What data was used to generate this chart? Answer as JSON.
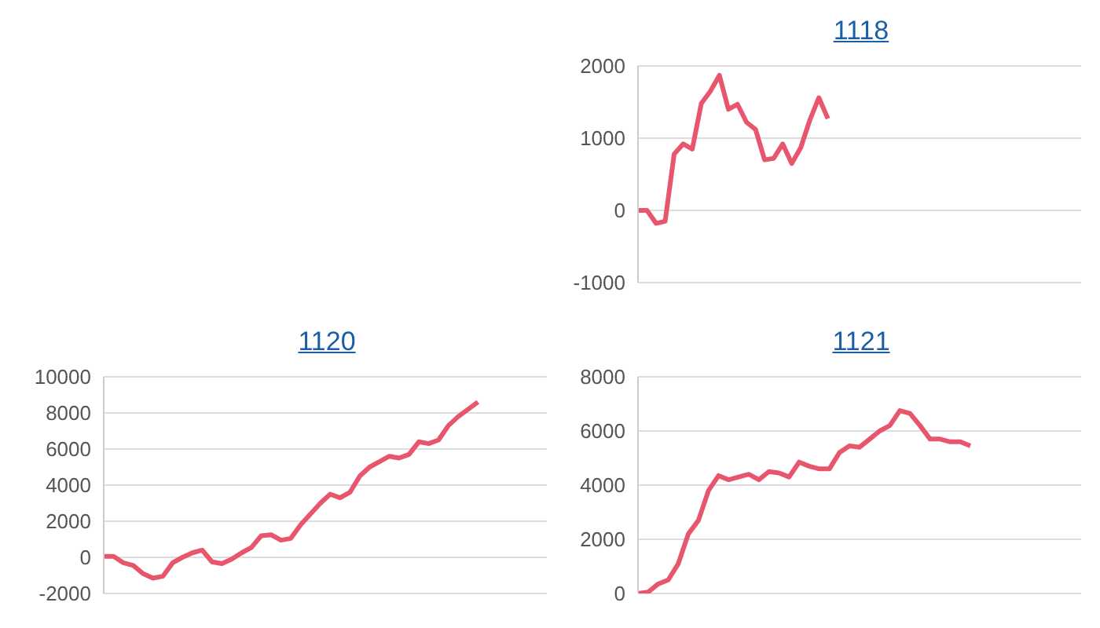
{
  "chart_data": [
    {
      "type": "line",
      "title": "1118",
      "categories": [
        null,
        null,
        null,
        null,
        null,
        null,
        null,
        null,
        null,
        null,
        null,
        null,
        null,
        null,
        null,
        null,
        null,
        null,
        null,
        null,
        null,
        null,
        null,
        null,
        null,
        null,
        null,
        null,
        null,
        null,
        null,
        null,
        null,
        null,
        null,
        null,
        null,
        null,
        null,
        null,
        null,
        null,
        null,
        null,
        null,
        null,
        null,
        null,
        null,
        null
      ],
      "series": [
        {
          "color": "#e8566e",
          "values": [
            0,
            0,
            -180,
            -150,
            780,
            920,
            850,
            1480,
            1650,
            1870,
            1400,
            1470,
            1220,
            1120,
            700,
            720,
            920,
            650,
            870,
            1250,
            1560,
            1270,
            null,
            null,
            null,
            null,
            null,
            null,
            null,
            null,
            null,
            null,
            null,
            null,
            null,
            null,
            null,
            null,
            null,
            null,
            null,
            null,
            null,
            null,
            null,
            null,
            null,
            null,
            null,
            null
          ]
        }
      ],
      "ylim": [
        -1000,
        2000
      ],
      "yticks": [
        -1000,
        0,
        1000,
        2000
      ],
      "grid": "y",
      "marker": "none",
      "tick_labels": "y"
    },
    {
      "type": "line",
      "title": "1120",
      "categories": [
        null,
        null,
        null,
        null,
        null,
        null,
        null,
        null,
        null,
        null,
        null,
        null,
        null,
        null,
        null,
        null,
        null,
        null,
        null,
        null,
        null,
        null,
        null,
        null,
        null,
        null,
        null,
        null,
        null,
        null,
        null,
        null,
        null,
        null,
        null,
        null,
        null,
        null,
        null,
        null,
        null,
        null,
        null,
        null,
        null,
        null
      ],
      "series": [
        {
          "color": "#e8566e",
          "values": [
            50,
            50,
            -300,
            -450,
            -900,
            -1150,
            -1050,
            -300,
            0,
            250,
            400,
            -250,
            -350,
            -100,
            250,
            550,
            1200,
            1250,
            950,
            1050,
            1800,
            2400,
            3000,
            3500,
            3300,
            3600,
            4500,
            5000,
            5300,
            5600,
            5500,
            5700,
            6400,
            6300,
            6500,
            7300,
            7800,
            8200,
            8600,
            null,
            null,
            null,
            null,
            null,
            null,
            null
          ]
        }
      ],
      "ylim": [
        -2000,
        10000
      ],
      "yticks": [
        -2000,
        0,
        2000,
        4000,
        6000,
        8000,
        10000
      ],
      "grid": "y",
      "marker": "none",
      "tick_labels": "y"
    },
    {
      "type": "line",
      "title": "1121",
      "categories": [
        null,
        null,
        null,
        null,
        null,
        null,
        null,
        null,
        null,
        null,
        null,
        null,
        null,
        null,
        null,
        null,
        null,
        null,
        null,
        null,
        null,
        null,
        null,
        null,
        null,
        null,
        null,
        null,
        null,
        null,
        null,
        null,
        null,
        null,
        null,
        null,
        null,
        null,
        null,
        null,
        null,
        null,
        null,
        null,
        null
      ],
      "series": [
        {
          "color": "#e8566e",
          "values": [
            0,
            50,
            350,
            500,
            1100,
            2200,
            2700,
            3800,
            4350,
            4200,
            4300,
            4400,
            4200,
            4500,
            4450,
            4300,
            4850,
            4700,
            4600,
            4600,
            5200,
            5450,
            5400,
            5700,
            6000,
            6200,
            6750,
            6650,
            6200,
            5700,
            5700,
            5600,
            5600,
            5450,
            null,
            null,
            null,
            null,
            null,
            null,
            null,
            null,
            null,
            null,
            null
          ]
        }
      ],
      "ylim": [
        0,
        8000
      ],
      "yticks": [
        0,
        2000,
        4000,
        6000,
        8000
      ],
      "grid": "y",
      "marker": "none",
      "tick_labels": "y"
    }
  ]
}
